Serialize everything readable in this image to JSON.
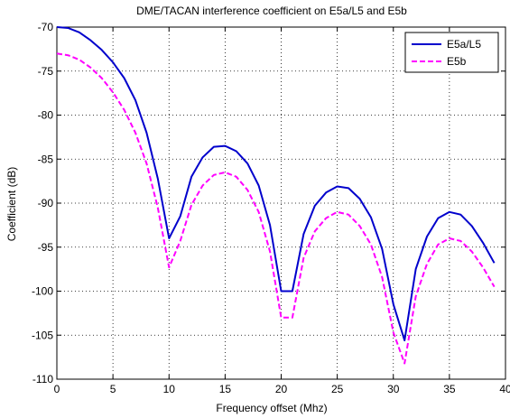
{
  "chart_data": {
    "type": "line",
    "title": "DME/TACAN interference coefficient on E5a/L5 and E5b",
    "xlabel": "Frequency offset (Mhz)",
    "ylabel": "Coefficient (dB)",
    "xlim": [
      0,
      40
    ],
    "ylim": [
      -110,
      -70
    ],
    "xticks": [
      "0",
      "5",
      "10",
      "15",
      "20",
      "25",
      "30",
      "35",
      "40"
    ],
    "yticks": [
      "-70",
      "-75",
      "-80",
      "-85",
      "-90",
      "-95",
      "-100",
      "-105",
      "-110"
    ],
    "grid": true,
    "grid_style": "dotted",
    "legend_position": "top-right",
    "series": [
      {
        "name": "E5a/L5",
        "color": "#0000cc",
        "line_style": "solid",
        "x": [
          0,
          1,
          2,
          3,
          4,
          5,
          6,
          7,
          8,
          9,
          10,
          11,
          12,
          13,
          14,
          15,
          16,
          17,
          18,
          19,
          20,
          21,
          22,
          23,
          24,
          25,
          26,
          27,
          28,
          29,
          30,
          31,
          32,
          33,
          34,
          35,
          36,
          37,
          38,
          39
        ],
        "y": [
          -70,
          -70.1,
          -70.6,
          -71.5,
          -72.6,
          -74,
          -75.8,
          -78.3,
          -82,
          -87.2,
          -94,
          -91.5,
          -87,
          -84.8,
          -83.6,
          -83.5,
          -84.1,
          -85.5,
          -88,
          -92.5,
          -100,
          -100,
          -93.5,
          -90.3,
          -88.8,
          -88.1,
          -88.3,
          -89.5,
          -91.6,
          -95.2,
          -101.5,
          -105.6,
          -97.5,
          -93.8,
          -91.7,
          -91,
          -91.3,
          -92.6,
          -94.5,
          -96.8
        ]
      },
      {
        "name": "E5b",
        "color": "#ff00ff",
        "line_style": "dashed",
        "x": [
          0,
          1,
          2,
          3,
          4,
          5,
          6,
          7,
          8,
          9,
          10,
          11,
          12,
          13,
          14,
          15,
          16,
          17,
          18,
          19,
          20,
          21,
          22,
          23,
          24,
          25,
          26,
          27,
          28,
          29,
          30,
          31,
          32,
          33,
          34,
          35,
          36,
          37,
          38,
          39
        ],
        "y": [
          -73,
          -73.2,
          -73.7,
          -74.6,
          -75.8,
          -77.4,
          -79.4,
          -82,
          -85.5,
          -90.5,
          -97.3,
          -94.3,
          -90.2,
          -88,
          -86.8,
          -86.5,
          -87,
          -88.5,
          -91,
          -95.5,
          -103,
          -103,
          -96.2,
          -93.2,
          -91.7,
          -91,
          -91.3,
          -92.6,
          -94.7,
          -98.4,
          -104.7,
          -108.2,
          -100.6,
          -96.9,
          -94.7,
          -94,
          -94.3,
          -95.5,
          -97.3,
          -99.5
        ]
      }
    ]
  }
}
